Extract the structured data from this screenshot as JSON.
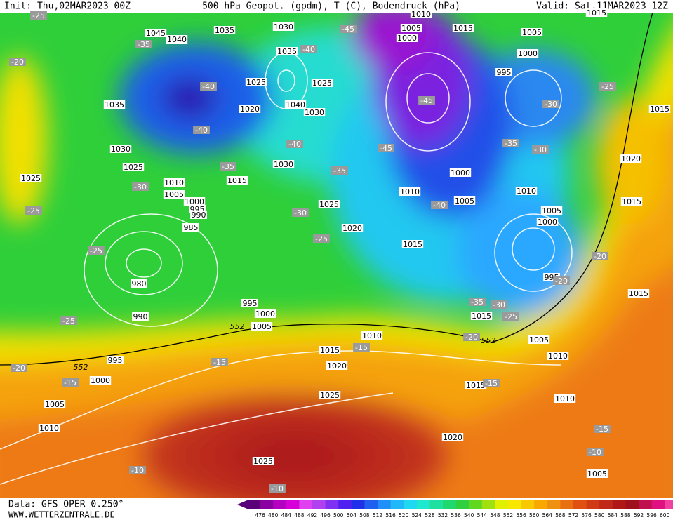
{
  "header": {
    "init": "Init: Thu,02MAR2023 00Z",
    "title": "500 hPa Geopot. (gpdm), T (C), Bodendruck (hPa)",
    "valid": "Valid: Sat,11MAR2023 12Z"
  },
  "footer": {
    "source": "Data: GFS OPER 0.250°",
    "site": "WWW.WETTERZENTRALE.DE"
  },
  "colorbar": {
    "labels": [
      476,
      480,
      484,
      488,
      492,
      496,
      500,
      504,
      508,
      512,
      516,
      520,
      524,
      528,
      532,
      536,
      540,
      544,
      548,
      552,
      556,
      560,
      564,
      568,
      572,
      576,
      580,
      584,
      588,
      592,
      596,
      600
    ]
  },
  "map": {
    "isobar_labels": [
      "1045",
      "1040",
      "1035",
      "1030",
      "1035",
      "1025",
      "1025",
      "1020",
      "1040",
      "1030",
      "1035",
      "1030",
      "1025",
      "1025",
      "1010",
      "1015",
      "1005",
      "1000",
      "995",
      "990",
      "985",
      "1030",
      "1025",
      "1020",
      "980",
      "990",
      "995",
      "1000",
      "1005",
      "995",
      "1000",
      "1005",
      "1010",
      "1010",
      "1015",
      "1020",
      "1025",
      "1025",
      "1015",
      "1020",
      "1010",
      "1005",
      "1005",
      "1010",
      "1015",
      "995",
      "1005",
      "1000",
      "1015",
      "1010",
      "1005",
      "1000",
      "1010",
      "1005",
      "1000",
      "1010",
      "1015",
      "1005",
      "1000",
      "995",
      "1020",
      "1015",
      "1015",
      "1015",
      "1015"
    ],
    "temperature_labels": [
      "-25",
      "-35",
      "-20",
      "-40",
      "-40",
      "-45",
      "-40",
      "-45",
      "-30",
      "-25",
      "-35",
      "-30",
      "-45",
      "-40",
      "-35",
      "-35",
      "-30",
      "-25",
      "-30",
      "-25",
      "-40",
      "-25",
      "-20",
      "-25",
      "-35",
      "-30",
      "-25",
      "-20",
      "-15",
      "-15",
      "-20",
      "-15",
      "-15",
      "-15",
      "-10",
      "-10",
      "-10",
      "-20"
    ],
    "contour_552_labels": [
      "552",
      "552",
      "552"
    ]
  }
}
